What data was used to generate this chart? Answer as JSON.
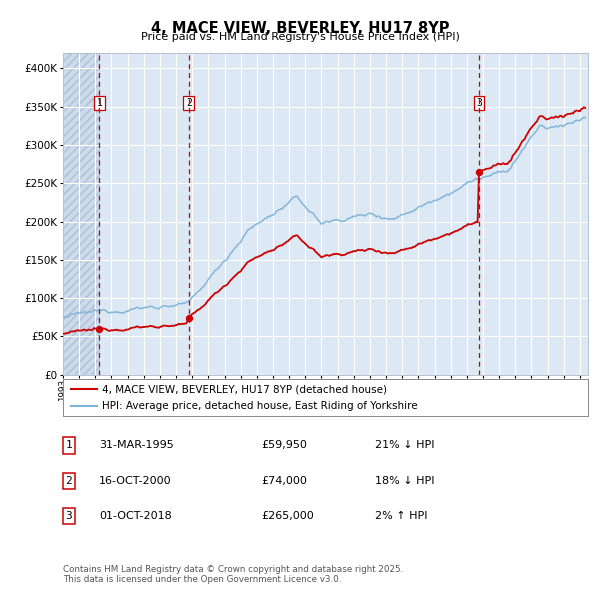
{
  "title": "4, MACE VIEW, BEVERLEY, HU17 8YP",
  "subtitle": "Price paid vs. HM Land Registry's House Price Index (HPI)",
  "legend_line1": "4, MACE VIEW, BEVERLEY, HU17 8YP (detached house)",
  "legend_line2": "HPI: Average price, detached house, East Riding of Yorkshire",
  "sale1_date": "31-MAR-1995",
  "sale1_price": 59950,
  "sale1_pct": "21% ↓ HPI",
  "sale2_date": "16-OCT-2000",
  "sale2_price": 74000,
  "sale2_pct": "18% ↓ HPI",
  "sale3_date": "01-OCT-2018",
  "sale3_price": 265000,
  "sale3_pct": "2% ↑ HPI",
  "footer": "Contains HM Land Registry data © Crown copyright and database right 2025.\nThis data is licensed under the Open Government Licence v3.0.",
  "red_color": "#cc0000",
  "blue_color": "#7db4d8",
  "plot_bg": "#dde8f5",
  "hatch_color": "#c0cfe0",
  "grid_color": "#ffffff",
  "dashed_line_color": "#cc0000",
  "ylim_min": 0,
  "ylim_max": 420000,
  "start_year": 1993.0,
  "end_year": 2025.5,
  "sale1_x": 1995.25,
  "sale2_x": 2000.79,
  "sale3_x": 2018.75
}
